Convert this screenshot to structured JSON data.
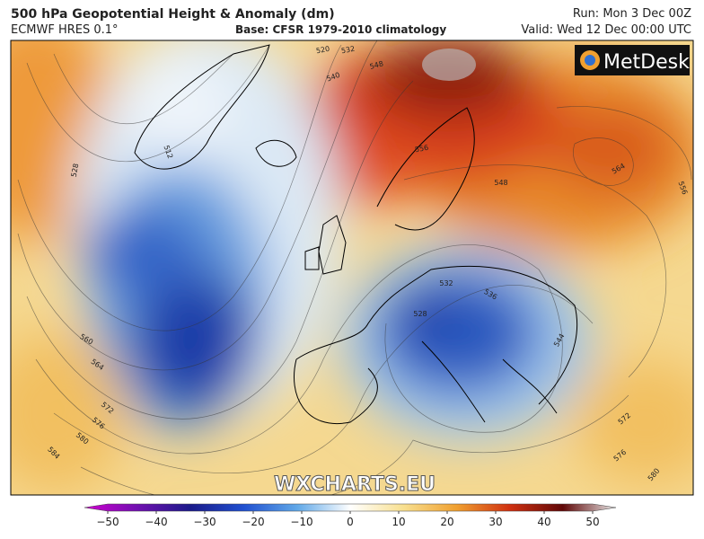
{
  "header": {
    "title": "500 hPa Geopotential Height & Anomaly (dm)",
    "model": "ECMWF HRES 0.1°",
    "base": "Base: CFSR 1979-2010 climatology",
    "run": "Run: Mon 3 Dec 00Z",
    "valid": "Valid: Wed 12 Dec 00:00 UTC"
  },
  "logo": "MetDesk",
  "watermark": "WXCHARTS.EU",
  "contour_labels": [
    520,
    532,
    540,
    548,
    512,
    528,
    556,
    564,
    556,
    548,
    536,
    528,
    532,
    544,
    560,
    564,
    572,
    576,
    580,
    584,
    572,
    576,
    580
  ],
  "colorbar": {
    "ticks": [
      {
        "value": -50,
        "label": "−50"
      },
      {
        "value": -40,
        "label": "−40"
      },
      {
        "value": -30,
        "label": "−30"
      },
      {
        "value": -20,
        "label": "−20"
      },
      {
        "value": -10,
        "label": "−10"
      },
      0,
      10,
      20,
      30,
      40,
      50
    ]
  }
}
